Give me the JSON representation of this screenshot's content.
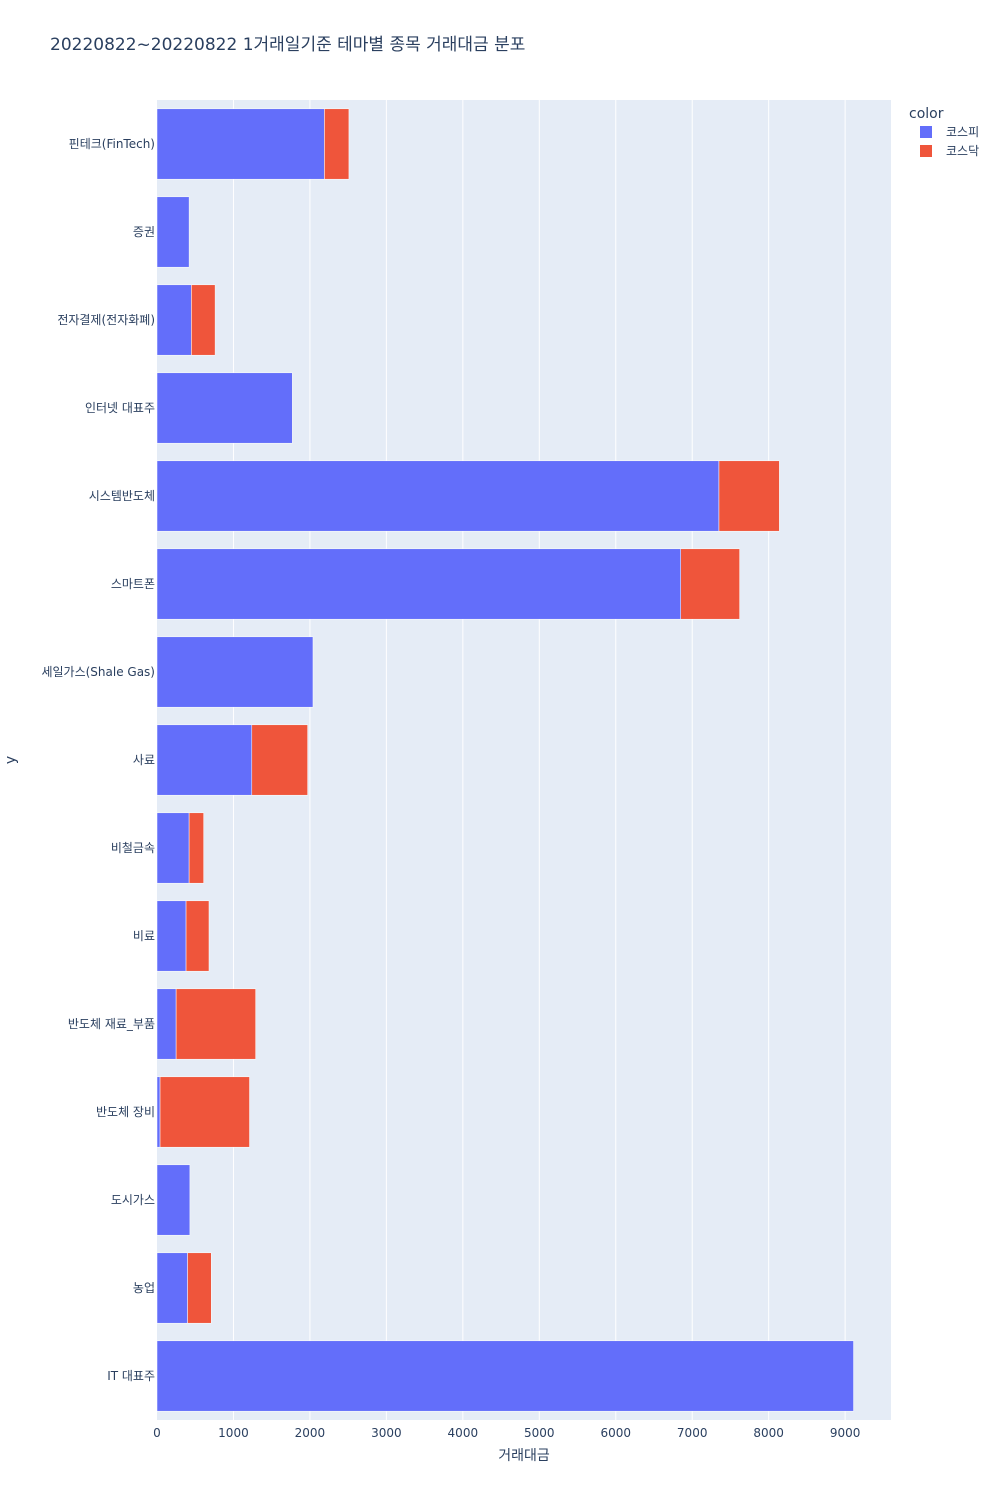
{
  "chart_data": {
    "type": "bar",
    "orientation": "horizontal",
    "barmode": "stack",
    "title": "20220822~20220822 1거래일기준 테마별 종목 거래대금 분포",
    "xlabel": "거래대금",
    "ylabel": "y",
    "xlim": [
      0,
      9600
    ],
    "xticks": [
      0,
      1000,
      2000,
      3000,
      4000,
      5000,
      6000,
      7000,
      8000,
      9000
    ],
    "grid": true,
    "legend": {
      "title": "color",
      "placement": "top-right"
    },
    "categories": [
      "핀테크(FinTech)",
      "증권",
      "전자결제(전자화폐)",
      "인터넷 대표주",
      "시스템반도체",
      "스마트폰",
      "세일가스(Shale Gas)",
      "사료",
      "비철금속",
      "비료",
      "반도체 재료_부품",
      "반도체 장비",
      "도시가스",
      "농업",
      "IT 대표주"
    ],
    "series": [
      {
        "name": "코스피",
        "color": "#636efa",
        "values": [
          2190,
          420,
          450,
          1770,
          7350,
          6850,
          2040,
          1240,
          420,
          380,
          250,
          40,
          430,
          400,
          9110
        ]
      },
      {
        "name": "코스닥",
        "color": "#ef553b",
        "values": [
          320,
          0,
          310,
          0,
          790,
          770,
          0,
          730,
          190,
          300,
          1040,
          1170,
          0,
          310,
          0
        ]
      }
    ]
  }
}
